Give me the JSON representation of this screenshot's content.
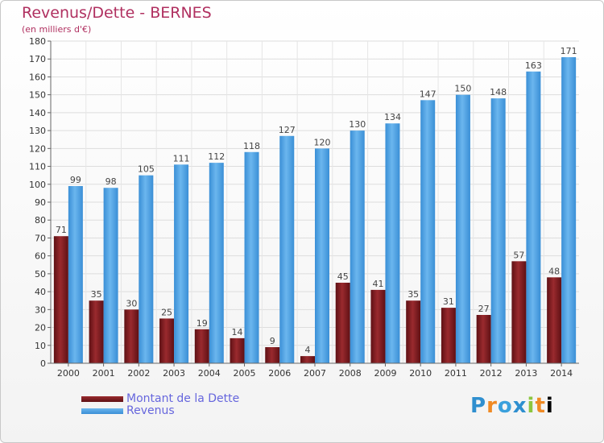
{
  "chart_data": {
    "type": "bar",
    "title": "Revenus/Dette - BERNES",
    "subtitle": "(en milliers d'€)",
    "categories": [
      "2000",
      "2001",
      "2002",
      "2003",
      "2004",
      "2005",
      "2006",
      "2007",
      "2008",
      "2009",
      "2010",
      "2011",
      "2012",
      "2013",
      "2014"
    ],
    "series": [
      {
        "name": "Montant de la Dette",
        "color": "#7a1a1e",
        "values": [
          71,
          35,
          30,
          25,
          19,
          14,
          9,
          4,
          45,
          41,
          35,
          31,
          27,
          57,
          48
        ]
      },
      {
        "name": "Revenus",
        "color": "#4da3e6",
        "values": [
          99,
          98,
          105,
          111,
          112,
          118,
          127,
          120,
          130,
          134,
          147,
          150,
          148,
          163,
          171
        ]
      }
    ],
    "ylim": [
      0,
      180
    ],
    "ytick_step": 10,
    "grid": true,
    "legend_position": "bottom-left"
  },
  "logo": {
    "letters": [
      "P",
      "r",
      "o",
      "x",
      "i",
      "t",
      "i"
    ],
    "text": "Proxiti"
  }
}
